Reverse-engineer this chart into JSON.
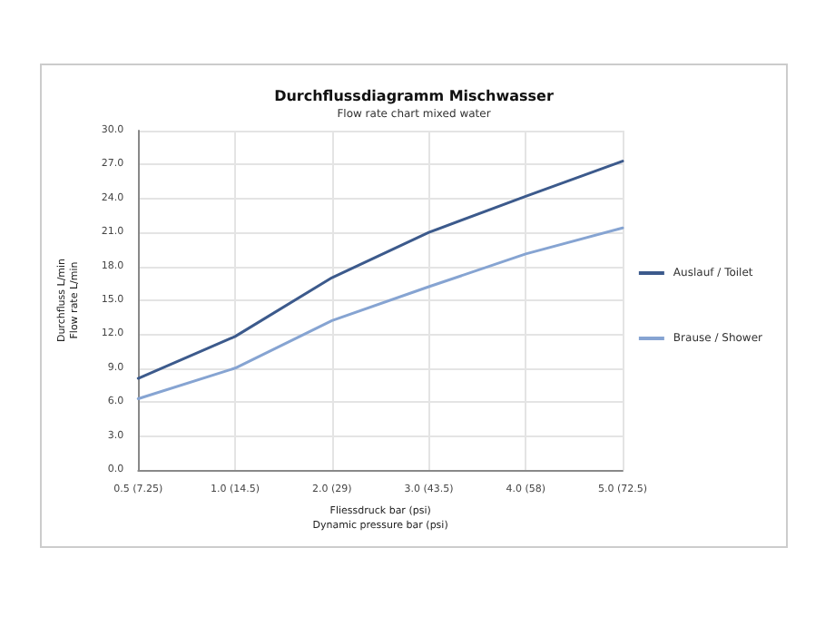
{
  "chart_data": {
    "type": "line",
    "title": "Durchflussdiagramm Mischwasser",
    "subtitle": "Flow rate chart mixed water",
    "xlabel": "Fliessdruck bar (psi)\nDynamic pressure bar (psi)",
    "ylabel": "Durchfluss L/min\nFlow rate L/min",
    "categories": [
      "0.5 (7.25)",
      "1.0 (14.5)",
      "2.0 (29)",
      "3.0 (43.5)",
      "4.0 (58)",
      "5.0 (72.5)"
    ],
    "series": [
      {
        "name": "Auslauf / Toilet",
        "color": "#3c5a8c",
        "values": [
          8.1,
          11.8,
          17.0,
          21.0,
          24.2,
          27.3
        ]
      },
      {
        "name": "Brause / Shower",
        "color": "#86a4d2",
        "values": [
          6.3,
          9.0,
          13.2,
          16.2,
          19.1,
          21.4
        ]
      }
    ],
    "ylim": [
      0,
      30
    ],
    "yticks": [
      {
        "value": 0,
        "label": "0.0"
      },
      {
        "value": 3,
        "label": "3.0"
      },
      {
        "value": 6,
        "label": "6.0"
      },
      {
        "value": 9,
        "label": "9.0"
      },
      {
        "value": 12,
        "label": "12.0"
      },
      {
        "value": 15,
        "label": "15.0"
      },
      {
        "value": 18,
        "label": "18.0"
      },
      {
        "value": 21,
        "label": "21.0"
      },
      {
        "value": 24,
        "label": "24.0"
      },
      {
        "value": 27,
        "label": "27.0"
      },
      {
        "value": 30,
        "label": "30.0"
      }
    ],
    "grid": true,
    "legend": "right",
    "marker": "none",
    "line_style": "solid"
  }
}
